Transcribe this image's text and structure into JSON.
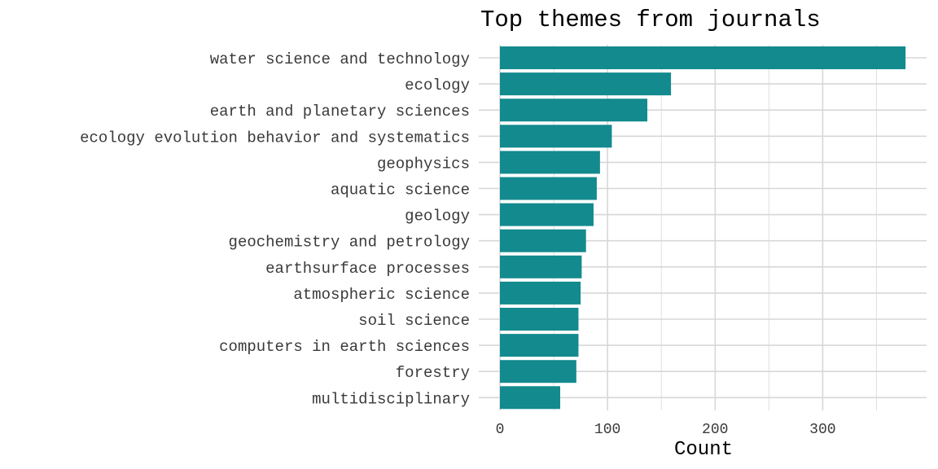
{
  "chart_data": {
    "type": "bar",
    "orientation": "horizontal",
    "title": "Top themes from journals",
    "xlabel": "Count",
    "ylabel": "",
    "categories": [
      "water science and technology",
      "ecology",
      "earth and planetary sciences",
      "ecology evolution behavior and systematics",
      "geophysics",
      "aquatic science",
      "geology",
      "geochemistry and petrology",
      "earthsurface processes",
      "atmospheric science",
      "soil science",
      "computers in earth sciences",
      "forestry",
      "multidisciplinary"
    ],
    "values": [
      377,
      159,
      137,
      104,
      93,
      90,
      87,
      80,
      76,
      75,
      73,
      73,
      71,
      56
    ],
    "xlim": [
      0,
      400
    ],
    "xticks": [
      0,
      100,
      200,
      300
    ],
    "xtick_labels": [
      "0",
      "100",
      "200",
      "300"
    ],
    "grid": true,
    "legend": "none",
    "colors": {
      "bar": "#138a8e",
      "grid": "#d7d7d7",
      "background": "#ffffff"
    }
  }
}
